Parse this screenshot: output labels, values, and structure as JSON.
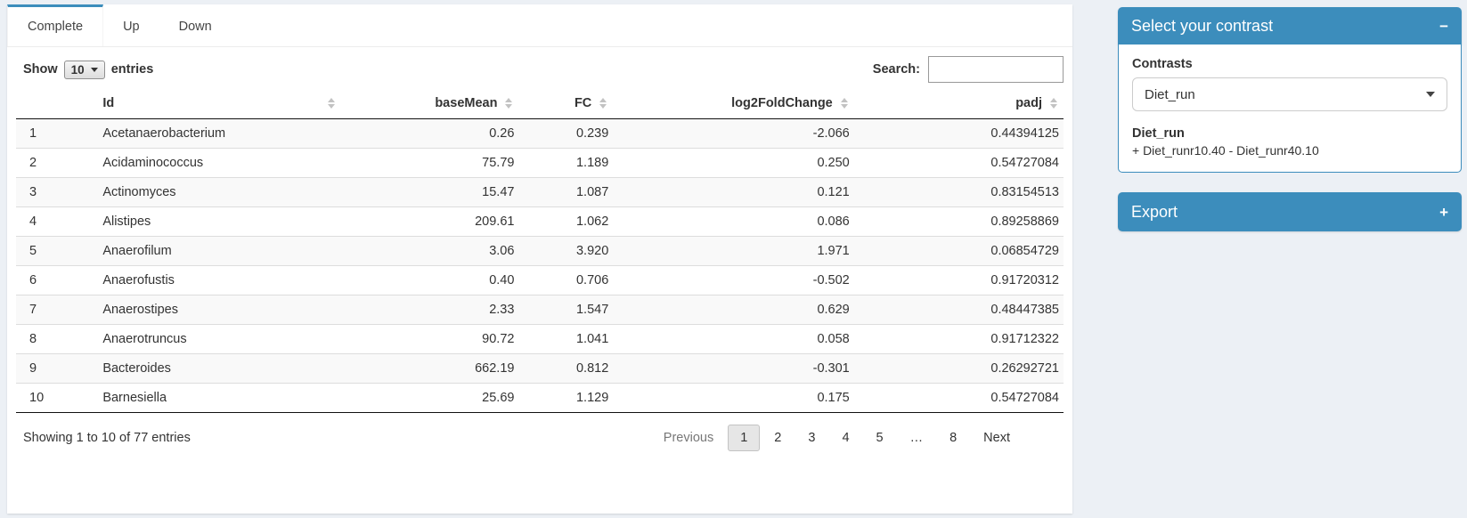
{
  "colors": {
    "primary": "#3c8dbc",
    "page_bg": "#ecf0f5"
  },
  "tabs": {
    "items": [
      {
        "label": "Complete",
        "active": true
      },
      {
        "label": "Up",
        "active": false
      },
      {
        "label": "Down",
        "active": false
      }
    ]
  },
  "controls": {
    "show_label": "Show",
    "page_length": "10",
    "entries_label": "entries",
    "search_label": "Search:",
    "search_value": ""
  },
  "table": {
    "columns": [
      {
        "label": "",
        "sortable": false,
        "key": "row-index"
      },
      {
        "label": "Id",
        "sortable": true,
        "key": "id"
      },
      {
        "label": "baseMean",
        "sortable": true,
        "key": "baseMean"
      },
      {
        "label": "FC",
        "sortable": true,
        "key": "FC"
      },
      {
        "label": "log2FoldChange",
        "sortable": true,
        "key": "log2FoldChange"
      },
      {
        "label": "padj",
        "sortable": true,
        "key": "padj"
      }
    ],
    "rows": [
      [
        "1",
        "Acetanaerobacterium",
        "0.26",
        "0.239",
        "-2.066",
        "0.44394125"
      ],
      [
        "2",
        "Acidaminococcus",
        "75.79",
        "1.189",
        "0.250",
        "0.54727084"
      ],
      [
        "3",
        "Actinomyces",
        "15.47",
        "1.087",
        "0.121",
        "0.83154513"
      ],
      [
        "4",
        "Alistipes",
        "209.61",
        "1.062",
        "0.086",
        "0.89258869"
      ],
      [
        "5",
        "Anaerofilum",
        "3.06",
        "3.920",
        "1.971",
        "0.06854729"
      ],
      [
        "6",
        "Anaerofustis",
        "0.40",
        "0.706",
        "-0.502",
        "0.91720312"
      ],
      [
        "7",
        "Anaerostipes",
        "2.33",
        "1.547",
        "0.629",
        "0.48447385"
      ],
      [
        "8",
        "Anaerotruncus",
        "90.72",
        "1.041",
        "0.058",
        "0.91712322"
      ],
      [
        "9",
        "Bacteroides",
        "662.19",
        "0.812",
        "-0.301",
        "0.26292721"
      ],
      [
        "10",
        "Barnesiella",
        "25.69",
        "1.129",
        "0.175",
        "0.54727084"
      ]
    ]
  },
  "footer": {
    "info": "Showing 1 to 10 of 77 entries",
    "previous_label": "Previous",
    "next_label": "Next",
    "pages": [
      "1",
      "2",
      "3",
      "4",
      "5",
      "…",
      "8"
    ],
    "current_page": "1"
  },
  "contrast_panel": {
    "title": "Select your contrast",
    "collapse_icon": "−",
    "contrasts_label": "Contrasts",
    "selected_contrast": "Diet_run",
    "contrast_name": "Diet_run",
    "contrast_formula": "+ Diet_runr10.40 - Diet_runr40.10"
  },
  "export_panel": {
    "title": "Export",
    "expand_icon": "+"
  }
}
